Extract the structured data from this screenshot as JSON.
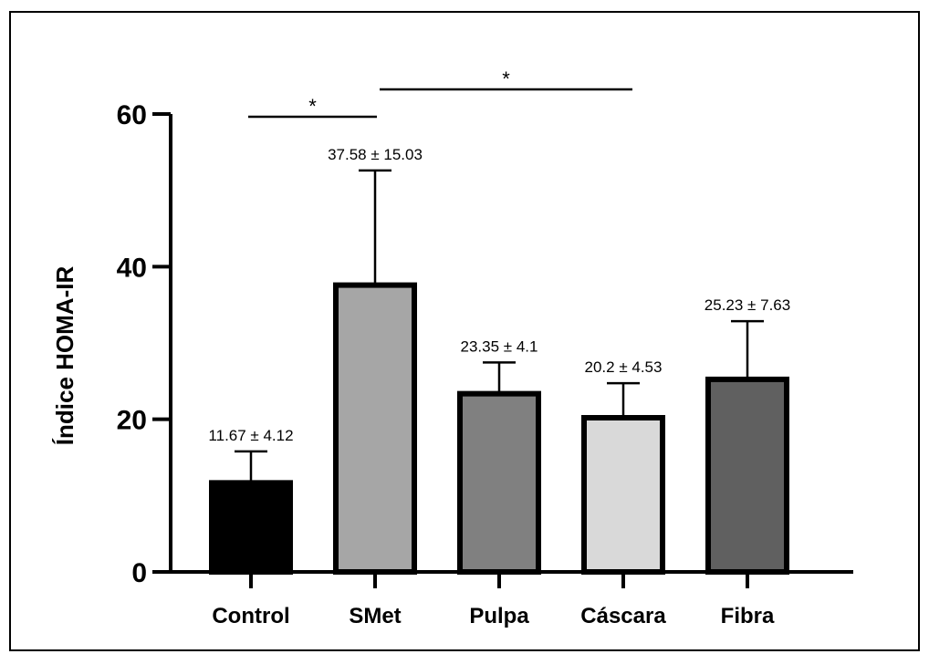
{
  "chart_data": {
    "type": "bar",
    "ylabel": "Índice HOMA-IR",
    "xlabel": "",
    "ylim": [
      0,
      60
    ],
    "yticks": [
      0,
      20,
      40,
      60
    ],
    "categories": [
      "Control",
      "SMet",
      "Pulpa",
      "Cáscara",
      "Fibra"
    ],
    "values": [
      11.67,
      37.58,
      23.35,
      20.2,
      25.23
    ],
    "errors": [
      4.12,
      15.03,
      4.1,
      4.53,
      7.63
    ],
    "data_labels": [
      "11.67 ± 4.12",
      "37.58 ± 15.03",
      "23.35 ± 4.1",
      "20.2 ± 4.53",
      "25.23 ± 7.63"
    ],
    "colors": [
      "#000000",
      "#a6a6a6",
      "#808080",
      "#d9d9d9",
      "#606060"
    ],
    "grid": false,
    "significance": [
      {
        "from": "Control",
        "to": "SMet",
        "label": "*"
      },
      {
        "from": "SMet",
        "to": "Cáscara",
        "label": "*"
      }
    ]
  }
}
